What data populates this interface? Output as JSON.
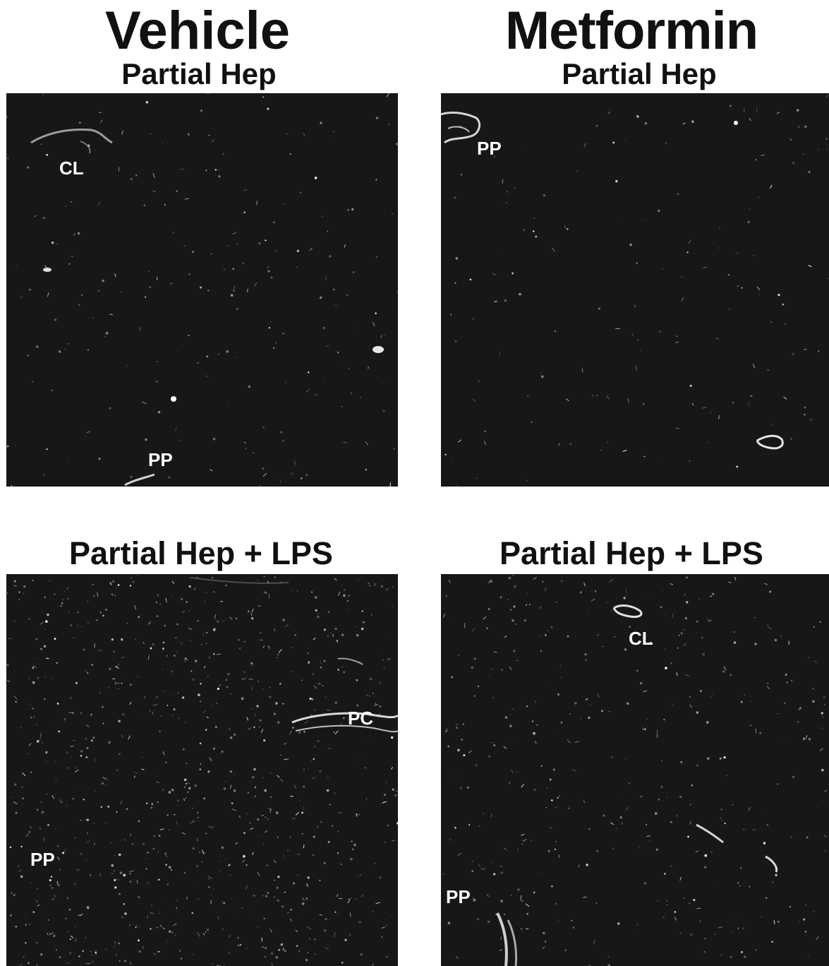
{
  "columns": {
    "left_title": "Vehicle",
    "right_title": "Metformin"
  },
  "panels": [
    {
      "subtitle": "Partial Hep",
      "labels": [
        "CL",
        "PP"
      ]
    },
    {
      "subtitle": "Partial Hep",
      "labels": [
        "PP"
      ]
    },
    {
      "subtitle": "Partial Hep + LPS",
      "labels": [
        "PC",
        "PP"
      ]
    },
    {
      "subtitle": "Partial Hep + LPS",
      "labels": [
        "CL",
        "PP"
      ]
    }
  ],
  "colors": {
    "panel_background": "#171717",
    "signal": "#ffffff",
    "text": "#111111"
  }
}
